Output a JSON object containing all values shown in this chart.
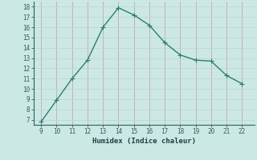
{
  "x": [
    9,
    10,
    11,
    12,
    13,
    14,
    15,
    16,
    17,
    18,
    19,
    20,
    21,
    22
  ],
  "y": [
    6.8,
    8.9,
    11.0,
    12.8,
    16.0,
    17.9,
    17.2,
    16.2,
    14.5,
    13.3,
    12.8,
    12.7,
    11.3,
    10.5
  ],
  "xlabel": "Humidex (Indice chaleur)",
  "ylim_min": 6.5,
  "ylim_max": 18.5,
  "xlim_min": 8.5,
  "xlim_max": 22.8,
  "yticks": [
    7,
    8,
    9,
    10,
    11,
    12,
    13,
    14,
    15,
    16,
    17,
    18
  ],
  "xticks": [
    9,
    10,
    11,
    12,
    13,
    14,
    15,
    16,
    17,
    18,
    19,
    20,
    21,
    22
  ],
  "line_color": "#2d7d70",
  "bg_color": "#cce8e4",
  "grid_h_color": "#b8d8d4",
  "grid_v_color": "#c8a8a8",
  "tick_color": "#2d6060",
  "label_color": "#1a4040",
  "marker_size": 2.5,
  "line_width": 1.0,
  "tick_labelsize": 5.5,
  "xlabel_fontsize": 6.5
}
